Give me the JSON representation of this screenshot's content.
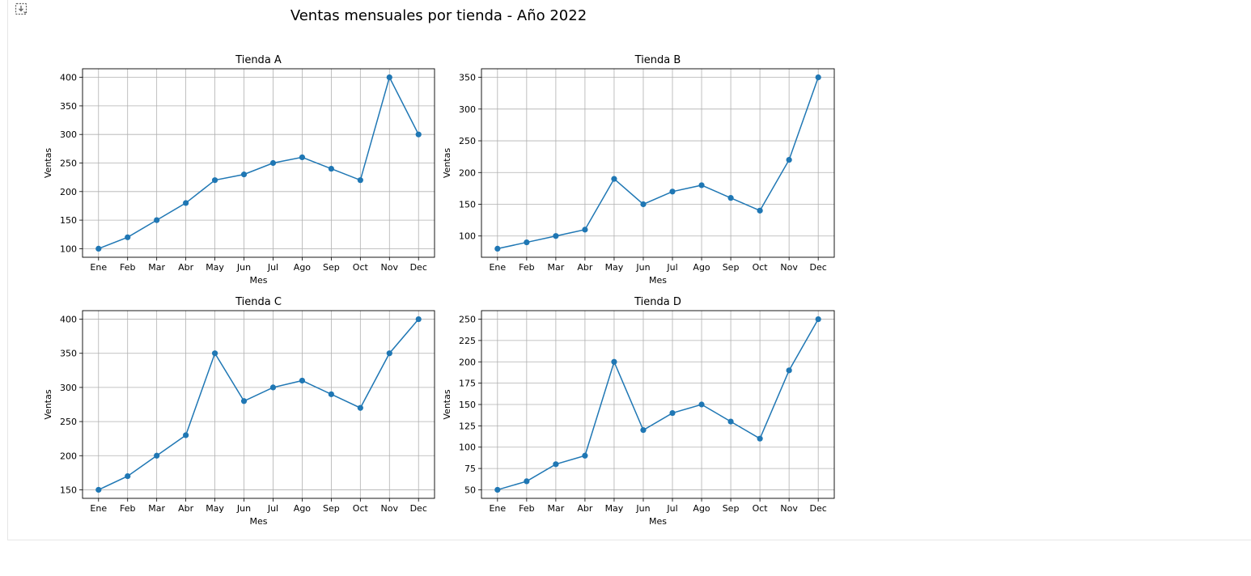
{
  "output": {
    "icon": "output-toggle-icon"
  },
  "figure": {
    "title": "Ventas mensuales por tienda - Año 2022"
  },
  "colors": {
    "line": "#1f77b4",
    "grid": "#b0b0b0",
    "axes": "#000000"
  },
  "chart_data": [
    {
      "type": "line",
      "title": "Tienda A",
      "xlabel": "Mes",
      "ylabel": "Ventas",
      "categories": [
        "Ene",
        "Feb",
        "Mar",
        "Abr",
        "May",
        "Jun",
        "Jul",
        "Ago",
        "Sep",
        "Oct",
        "Nov",
        "Dec"
      ],
      "values": [
        100,
        120,
        150,
        180,
        220,
        230,
        250,
        260,
        240,
        220,
        400,
        300
      ],
      "yticks": [
        100,
        150,
        200,
        250,
        300,
        350,
        400
      ],
      "ylim": [
        85,
        415
      ],
      "grid": true
    },
    {
      "type": "line",
      "title": "Tienda B",
      "xlabel": "Mes",
      "ylabel": "Ventas",
      "categories": [
        "Ene",
        "Feb",
        "Mar",
        "Abr",
        "May",
        "Jun",
        "Jul",
        "Ago",
        "Sep",
        "Oct",
        "Nov",
        "Dec"
      ],
      "values": [
        80,
        90,
        100,
        110,
        190,
        150,
        170,
        180,
        160,
        140,
        220,
        350
      ],
      "yticks": [
        100,
        150,
        200,
        250,
        300,
        350
      ],
      "ylim": [
        66.5,
        363.5
      ],
      "grid": true
    },
    {
      "type": "line",
      "title": "Tienda C",
      "xlabel": "Mes",
      "ylabel": "Ventas",
      "categories": [
        "Ene",
        "Feb",
        "Mar",
        "Abr",
        "May",
        "Jun",
        "Jul",
        "Ago",
        "Sep",
        "Oct",
        "Nov",
        "Dec"
      ],
      "values": [
        150,
        170,
        200,
        230,
        350,
        280,
        300,
        310,
        290,
        270,
        350,
        400
      ],
      "yticks": [
        150,
        200,
        250,
        300,
        350,
        400
      ],
      "ylim": [
        137.5,
        412.5
      ],
      "grid": true
    },
    {
      "type": "line",
      "title": "Tienda D",
      "xlabel": "Mes",
      "ylabel": "Ventas",
      "categories": [
        "Ene",
        "Feb",
        "Mar",
        "Abr",
        "May",
        "Jun",
        "Jul",
        "Ago",
        "Sep",
        "Oct",
        "Nov",
        "Dec"
      ],
      "values": [
        50,
        60,
        80,
        90,
        200,
        120,
        140,
        150,
        130,
        110,
        190,
        250
      ],
      "yticks": [
        50,
        75,
        100,
        125,
        150,
        175,
        200,
        225,
        250
      ],
      "ylim": [
        40,
        260
      ],
      "grid": true
    }
  ]
}
